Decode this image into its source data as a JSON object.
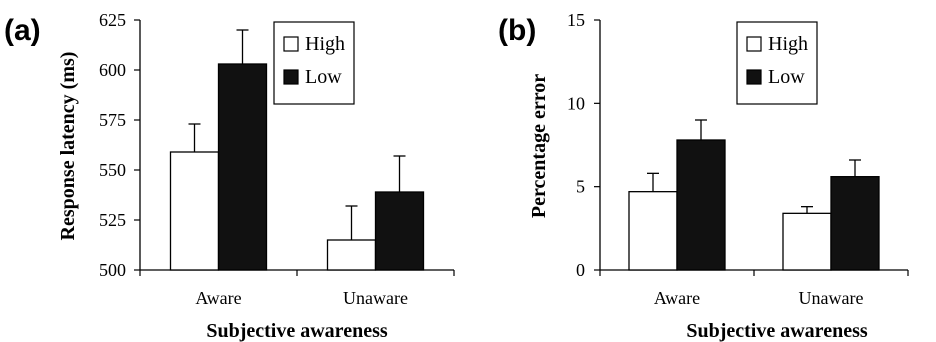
{
  "chart_data": [
    {
      "type": "bar",
      "panel_label": "(a)",
      "categories": [
        "Aware",
        "Unaware"
      ],
      "series": [
        {
          "name": "High",
          "color": "#ffffff",
          "values": [
            559,
            515
          ],
          "errors": [
            14,
            17
          ]
        },
        {
          "name": "Low",
          "color": "#111111",
          "values": [
            603,
            539
          ],
          "errors": [
            17,
            18
          ]
        }
      ],
      "xlabel": "Subjective awareness",
      "ylabel": "Response latency (ms)",
      "ylim": [
        500,
        625
      ],
      "yticks": [
        500,
        525,
        550,
        575,
        600,
        625
      ],
      "legend_position": "top-right",
      "grid": false
    },
    {
      "type": "bar",
      "panel_label": "(b)",
      "categories": [
        "Aware",
        "Unaware"
      ],
      "series": [
        {
          "name": "High",
          "color": "#ffffff",
          "values": [
            4.7,
            3.4
          ],
          "errors": [
            1.1,
            0.4
          ]
        },
        {
          "name": "Low",
          "color": "#111111",
          "values": [
            7.8,
            5.6
          ],
          "errors": [
            1.2,
            1.0
          ]
        }
      ],
      "xlabel": "Subjective awareness",
      "ylabel": "Percentage error",
      "ylim": [
        0,
        15
      ],
      "yticks": [
        0,
        5,
        10,
        15
      ],
      "legend_position": "top-right",
      "grid": false
    }
  ]
}
